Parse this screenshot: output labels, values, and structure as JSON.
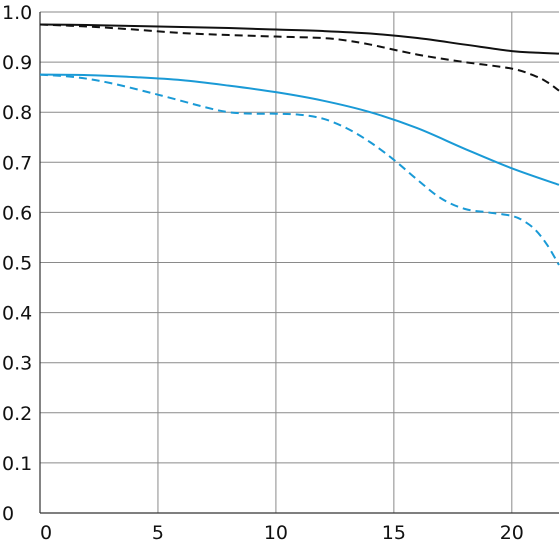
{
  "chart_data": {
    "type": "line",
    "title": "",
    "xlabel": "",
    "ylabel": "",
    "xlim": [
      0,
      22
    ],
    "ylim": [
      0,
      1.0
    ],
    "x_ticks": [
      0,
      5,
      10,
      15,
      20
    ],
    "y_ticks": [
      0,
      0.1,
      0.2,
      0.3,
      0.4,
      0.5,
      0.6,
      0.7,
      0.8,
      0.9,
      1.0
    ],
    "x_tick_labels": [
      "0",
      "5",
      "10",
      "15",
      "20"
    ],
    "y_tick_labels": [
      "0",
      "0.1",
      "0.2",
      "0.3",
      "0.4",
      "0.5",
      "0.6",
      "0.7",
      "0.8",
      "0.9",
      "1.0"
    ],
    "grid": true,
    "legend": "none",
    "series": [
      {
        "color": "#111111",
        "dash": "solid",
        "x": [
          0,
          2,
          4,
          6,
          8,
          10,
          12,
          14,
          16,
          18,
          20,
          21,
          22
        ],
        "y": [
          0.975,
          0.974,
          0.972,
          0.97,
          0.968,
          0.965,
          0.962,
          0.957,
          0.948,
          0.935,
          0.922,
          0.919,
          0.917
        ]
      },
      {
        "color": "#111111",
        "dash": "dashed",
        "x": [
          0,
          2,
          4,
          6,
          8,
          10,
          12,
          13,
          14,
          16,
          18,
          20,
          21,
          21.5,
          22
        ],
        "y": [
          0.975,
          0.971,
          0.965,
          0.958,
          0.954,
          0.951,
          0.948,
          0.943,
          0.935,
          0.915,
          0.9,
          0.887,
          0.872,
          0.86,
          0.843
        ]
      },
      {
        "color": "#1a9ad6",
        "dash": "solid",
        "x": [
          0,
          2,
          4,
          6,
          8,
          10,
          12,
          14,
          16,
          18,
          20,
          22
        ],
        "y": [
          0.875,
          0.874,
          0.87,
          0.864,
          0.853,
          0.84,
          0.823,
          0.8,
          0.768,
          0.727,
          0.688,
          0.655
        ]
      },
      {
        "color": "#1a9ad6",
        "dash": "dashed",
        "x": [
          0,
          1.5,
          3,
          5,
          7,
          8,
          9,
          10,
          11,
          12,
          13,
          14,
          15,
          16,
          17,
          18,
          19,
          20,
          20.5,
          21,
          21.5,
          22
        ],
        "y": [
          0.875,
          0.87,
          0.858,
          0.835,
          0.81,
          0.8,
          0.797,
          0.797,
          0.795,
          0.787,
          0.768,
          0.74,
          0.705,
          0.665,
          0.628,
          0.607,
          0.6,
          0.593,
          0.583,
          0.565,
          0.535,
          0.495
        ]
      }
    ]
  }
}
